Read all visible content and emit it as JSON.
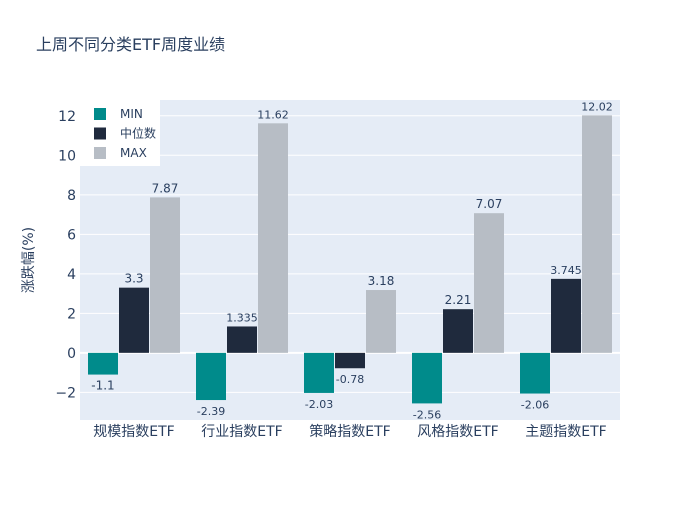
{
  "chart_data": {
    "type": "bar",
    "title": "上周不同分类ETF周度业绩",
    "xlabel": "",
    "ylabel": "涨跌幅(%)",
    "categories": [
      "规模指数ETF",
      "行业指数ETF",
      "策略指数ETF",
      "风格指数ETF",
      "主题指数ETF"
    ],
    "series": [
      {
        "name": "MIN",
        "color": "#008b8b",
        "values": [
          -1.1,
          -2.39,
          -2.03,
          -2.56,
          -2.06
        ],
        "labels": [
          "-1.1",
          "-2.39",
          "-2.03",
          "-2.56",
          "-2.06"
        ]
      },
      {
        "name": "中位数",
        "color": "#1f2a3d",
        "values": [
          3.3,
          1.335,
          -0.78,
          2.21,
          3.745
        ],
        "labels": [
          "3.3",
          "1.335",
          "-0.78",
          "2.21",
          "3.745"
        ]
      },
      {
        "name": "MAX",
        "color": "#b7bdc5",
        "values": [
          7.87,
          11.62,
          3.18,
          7.07,
          12.02
        ],
        "labels": [
          "7.87",
          "11.62",
          "3.18",
          "7.07",
          "12.02"
        ]
      }
    ],
    "ylim": [
      -3.4,
      12.8
    ],
    "yticks": [
      -2,
      0,
      2,
      4,
      6,
      8,
      10,
      12
    ],
    "ytick_labels": [
      "−2",
      "0",
      "2",
      "4",
      "6",
      "8",
      "10",
      "12"
    ],
    "grid": true,
    "legend": "top-left",
    "plot_bg": "#e5ecf6"
  }
}
